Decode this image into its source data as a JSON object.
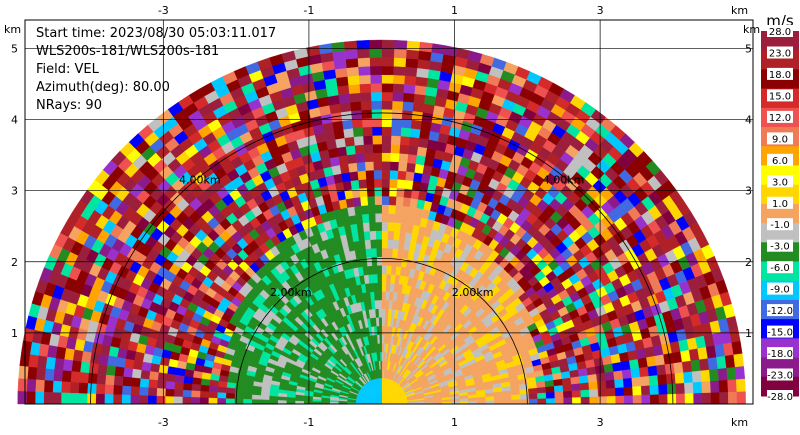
{
  "info": {
    "start_time": "Start time: 2023/08/30 05:03:11.017",
    "instrument": "WLS200s-181/WLS200s-181",
    "field": "Field: VEL",
    "azimuth": "Azimuth(deg): 80.00",
    "nrays": "NRays: 90"
  },
  "chart_data": {
    "type": "heatmap",
    "title": "",
    "xlabel": "km",
    "ylabel": "km",
    "x_ticks": [
      "-3",
      "-1",
      "1",
      "3"
    ],
    "y_ticks": [
      "1",
      "2",
      "3",
      "4",
      "5"
    ],
    "xlim": [
      -4.9,
      5.1
    ],
    "ylim": [
      0,
      5.4
    ],
    "range_rings": [
      {
        "label": "2.00km",
        "radius_km": 2.0
      },
      {
        "label": "4.00km",
        "radius_km": 4.0
      }
    ],
    "max_range_km": 5.0,
    "colorbar": {
      "unit": "m/s",
      "tick_labels": [
        "28.0",
        "23.0",
        "18.0",
        "15.0",
        "12.0",
        "9.0",
        "6.0",
        "3.0",
        "1.0",
        "-1.0",
        "-3.0",
        "-6.0",
        "-9.0",
        "-12.0",
        "-15.0",
        "-18.0",
        "-23.0",
        "-28.0"
      ],
      "colors": [
        "#9b1f3c",
        "#b02027",
        "#8b0000",
        "#d42a2a",
        "#ef5050",
        "#f07a56",
        "#ffa500",
        "#ffff00",
        "#ffd700",
        "#f4a460",
        "#c0c0c0",
        "#228b22",
        "#00e5a0",
        "#00c8ff",
        "#4169e1",
        "#0000ff",
        "#9932cc",
        "#8b1a8b",
        "#800040"
      ]
    },
    "regions": [
      {
        "name": "near-field negative velocity (west)",
        "value_range": [
          -6.0,
          -1.0
        ]
      },
      {
        "name": "near-field positive velocity (east)",
        "value_range": [
          1.0,
          6.0
        ]
      },
      {
        "name": "far-field noise",
        "value_range": [
          -28.0,
          28.0
        ]
      }
    ]
  }
}
